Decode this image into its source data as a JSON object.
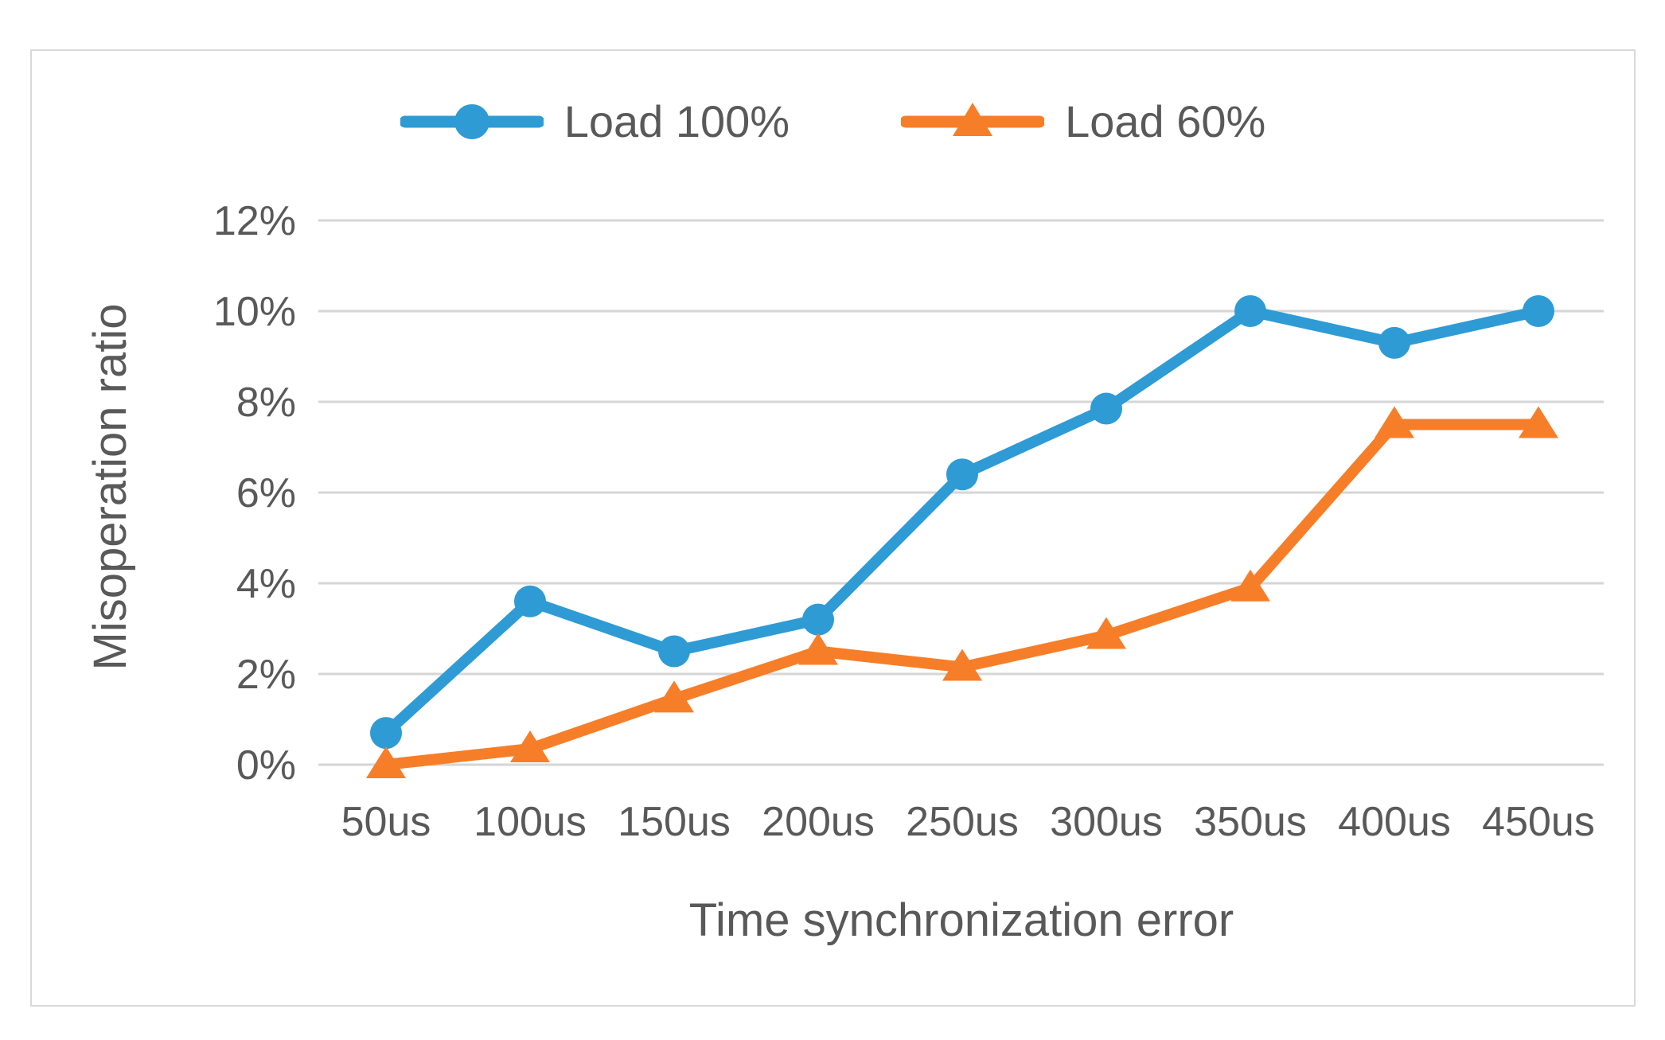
{
  "figure": {
    "background": "#FFFFFF",
    "border_color": "#D9D9D9",
    "text_color": "#595959",
    "grid_color": "#D6D6D6"
  },
  "legend": {
    "items": [
      {
        "label": "Load 100%",
        "icon": "circle-marker-icon"
      },
      {
        "label": "Load 60%",
        "icon": "triangle-marker-icon"
      }
    ]
  },
  "chart_data": {
    "type": "line",
    "title": "",
    "categories": [
      "50us",
      "100us",
      "150us",
      "200us",
      "250us",
      "300us",
      "350us",
      "400us",
      "450us"
    ],
    "series": [
      {
        "name": "Load 100%",
        "color": "#2E9BD5",
        "marker": "circle",
        "values": [
          0.7,
          3.6,
          2.5,
          3.2,
          6.4,
          7.85,
          10,
          9.3,
          10
        ]
      },
      {
        "name": "Load 60%",
        "color": "#F77E28",
        "marker": "triangle",
        "values": [
          0,
          0.35,
          1.45,
          2.5,
          2.15,
          2.85,
          3.9,
          7.5,
          7.5
        ]
      }
    ],
    "xlabel": "Time synchronization error",
    "ylabel": "Misoperation ratio",
    "ylim": [
      0,
      12
    ],
    "ytick_step": 2,
    "ytick_labels": [
      "0%",
      "2%",
      "4%",
      "6%",
      "8%",
      "10%",
      "12%"
    ],
    "grid": true,
    "legend_position": "top-center"
  }
}
